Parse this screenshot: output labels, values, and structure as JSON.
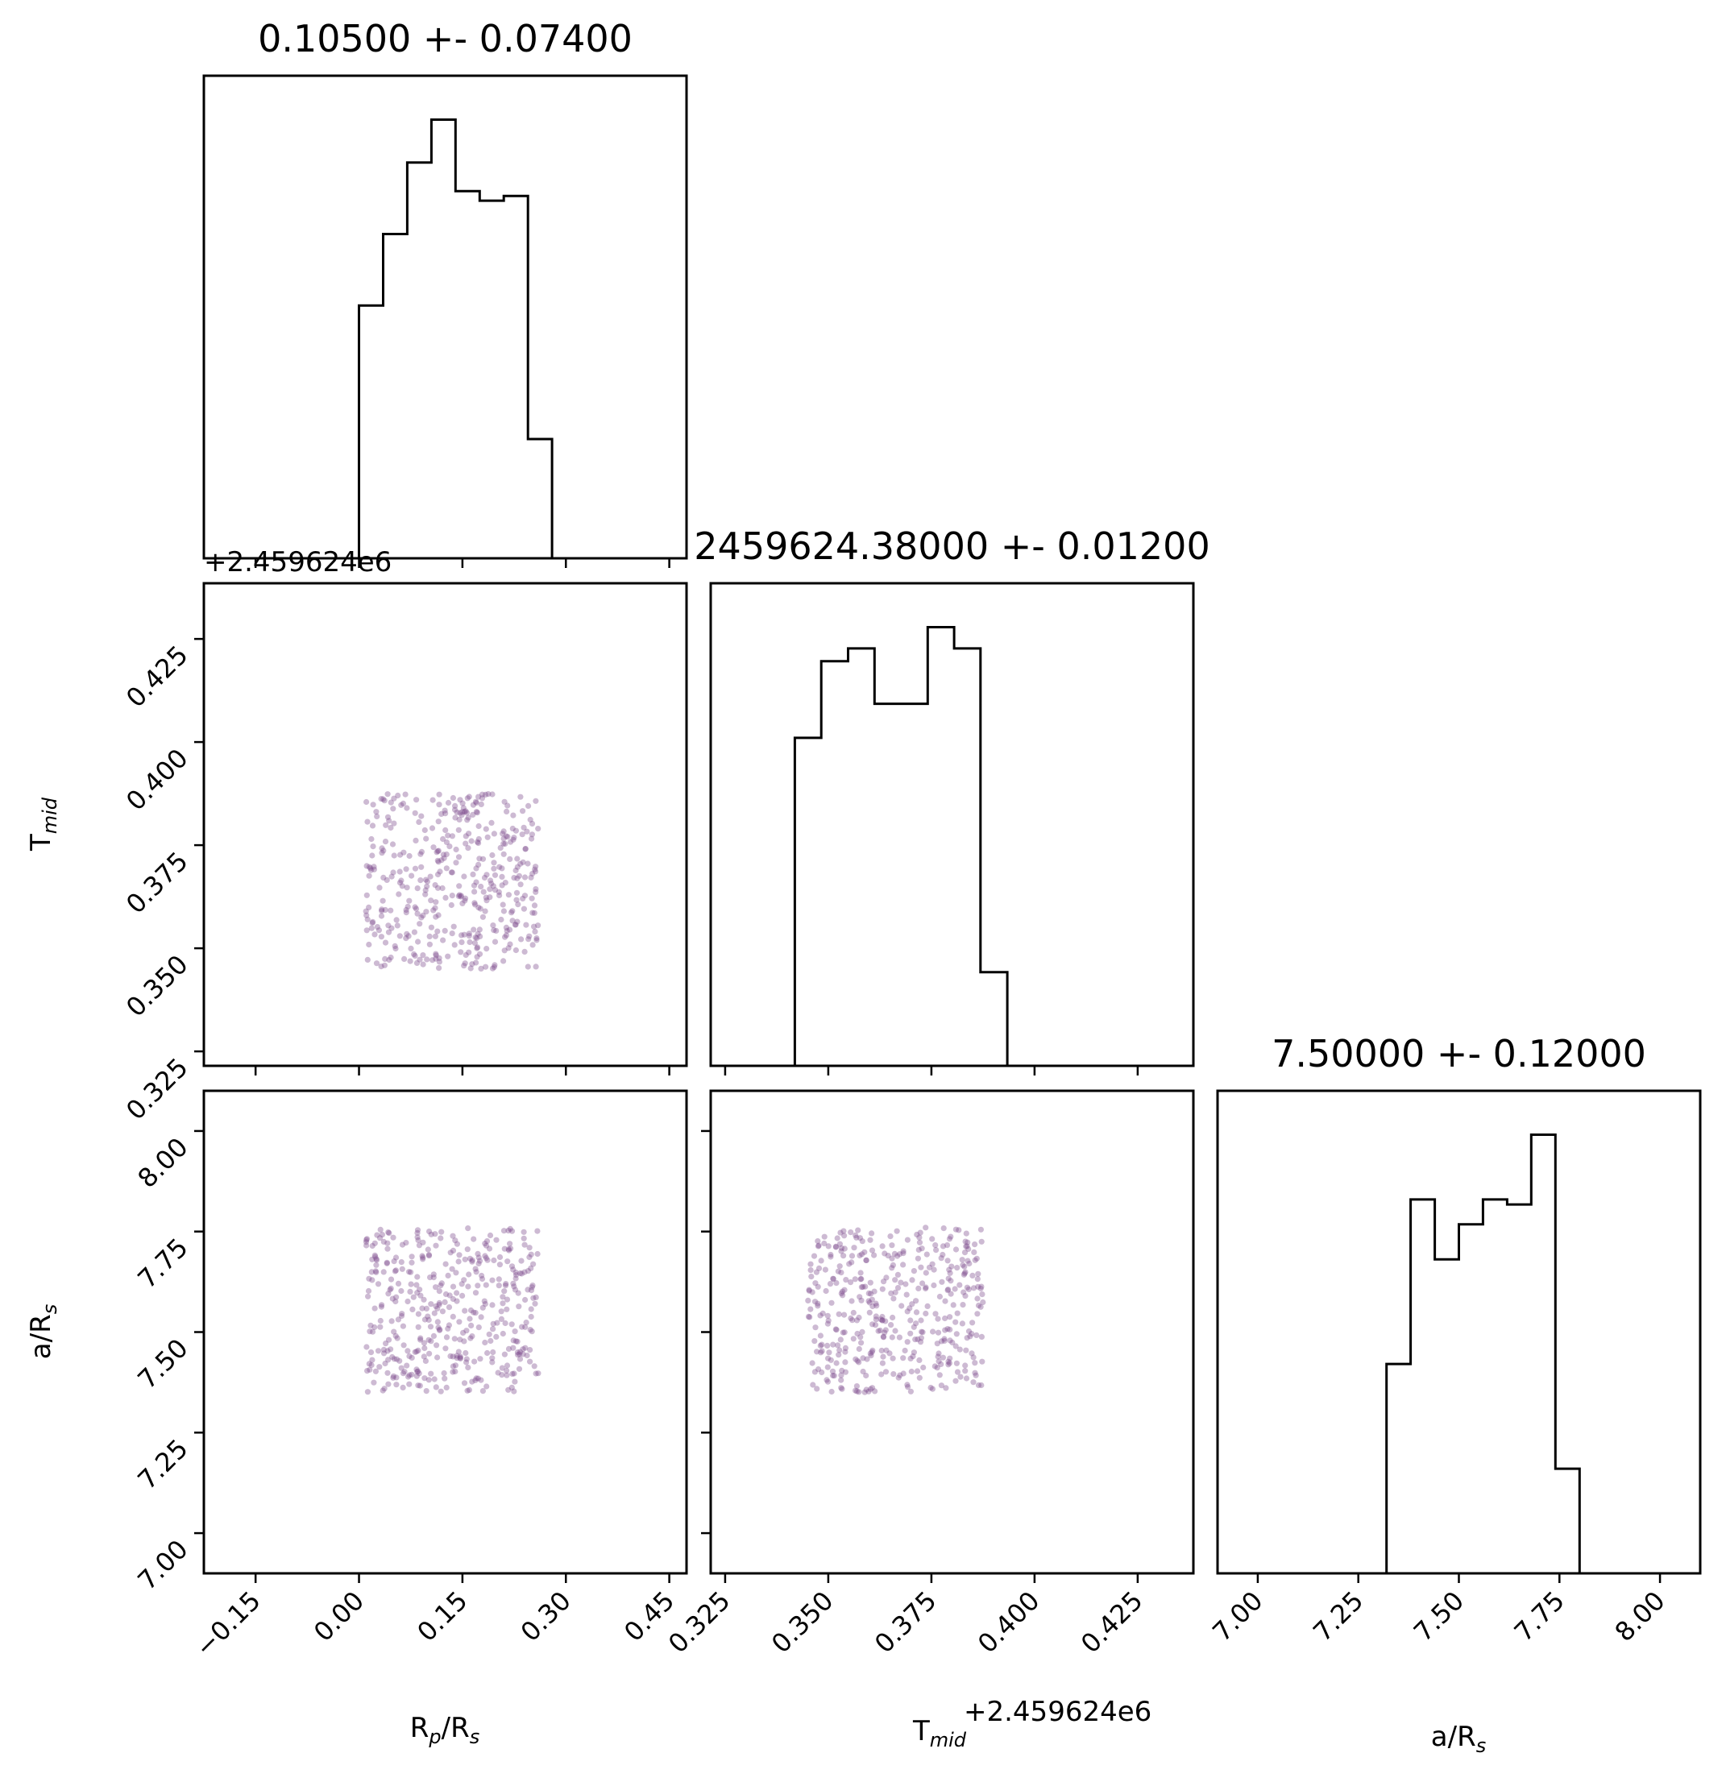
{
  "chart_data": {
    "type": "corner",
    "parameters": [
      {
        "key": "rp",
        "label_main": "R",
        "label_sub": "p",
        "label_rest": "/R",
        "label_sub2": "s",
        "range": [
          -0.225,
          0.475
        ],
        "ticks": [
          -0.15,
          0.0,
          0.15,
          0.3,
          0.45
        ],
        "tick_labels": [
          "−0.15",
          "0.00",
          "0.15",
          "0.30",
          "0.45"
        ],
        "title": "0.10500 +- 0.07400",
        "hist_edges": [
          -0.225,
          -0.19,
          -0.155,
          -0.12,
          -0.085,
          -0.05,
          -0.015,
          0.0,
          0.035,
          0.07,
          0.105,
          0.14,
          0.175,
          0.21,
          0.245,
          0.28,
          0.315,
          0.35,
          0.385,
          0.42,
          0.475
        ],
        "hist_counts": [
          0,
          0,
          0,
          0,
          0,
          0,
          0,
          53,
          68,
          83,
          92,
          77,
          75,
          76,
          25,
          0,
          0,
          0,
          0,
          0
        ]
      },
      {
        "key": "tmid",
        "label_main": "T",
        "label_sub": "mid",
        "label_rest": "",
        "label_sub2": "",
        "range": [
          0.3215,
          0.4385
        ],
        "ticks": [
          0.325,
          0.35,
          0.375,
          0.4,
          0.425
        ],
        "tick_labels": [
          "0.325",
          "0.350",
          "0.375",
          "0.400",
          "0.425"
        ],
        "offset_label": "+2.459624e6",
        "title": "2459624.38000 +- 0.01200",
        "hist_edges": [
          0.3215,
          0.3265,
          0.3315,
          0.3365,
          0.3419,
          0.3483,
          0.3548,
          0.3612,
          0.3676,
          0.3741,
          0.3805,
          0.3869,
          0.3934,
          0.3984,
          0.4034,
          0.4084,
          0.4134,
          0.4184,
          0.4234,
          0.4385
        ],
        "hist_counts": [
          0,
          0,
          0,
          0,
          77,
          95,
          98,
          85,
          85,
          103,
          98,
          22,
          0,
          0,
          0,
          0,
          0,
          0,
          0
        ]
      },
      {
        "key": "ars",
        "label_main": "a",
        "label_sub": "",
        "label_rest": "/R",
        "label_sub2": "s",
        "range": [
          6.9,
          8.1
        ],
        "ticks": [
          7.0,
          7.25,
          7.5,
          7.75,
          8.0
        ],
        "tick_labels": [
          "7.00",
          "7.25",
          "7.50",
          "7.75",
          "8.00"
        ],
        "title": "7.50000 +- 0.12000",
        "hist_edges": [
          6.9,
          6.96,
          7.02,
          7.08,
          7.14,
          7.2,
          7.26,
          7.32,
          7.38,
          7.44,
          7.5,
          7.56,
          7.62,
          7.68,
          7.74,
          7.8,
          7.86,
          7.92,
          7.98,
          8.04,
          8.1
        ],
        "hist_counts": [
          0,
          0,
          0,
          0,
          0,
          0,
          0,
          42,
          75,
          63,
          70,
          75,
          74,
          88,
          21,
          0,
          0,
          0,
          0,
          0
        ]
      }
    ],
    "scatter_color": "#7b4a8c",
    "scatter_points": 420,
    "samples_bounds": {
      "rp": [
        0.01,
        0.26
      ],
      "tmid": [
        0.345,
        0.3875
      ],
      "ars": [
        7.35,
        7.76
      ]
    }
  }
}
